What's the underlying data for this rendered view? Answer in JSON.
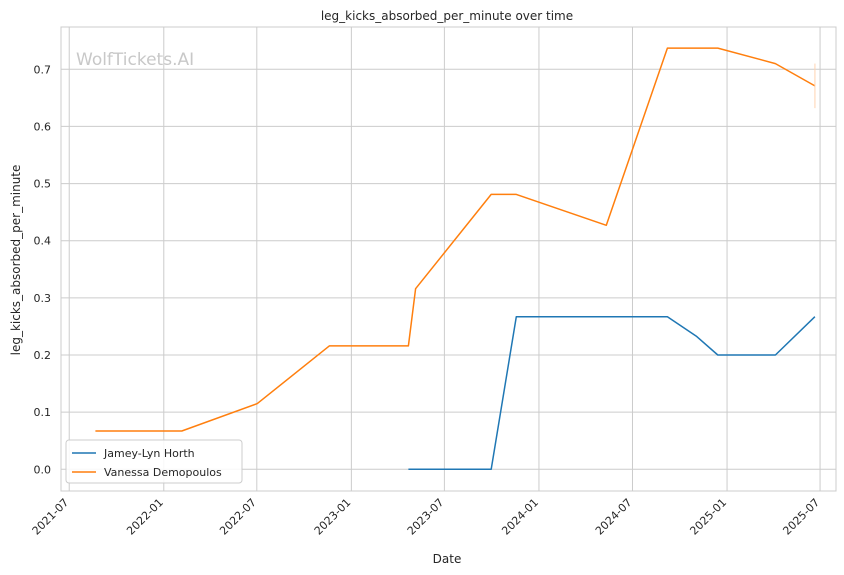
{
  "chart_data": {
    "type": "line",
    "title": "leg_kicks_absorbed_per_minute over time",
    "xlabel": "Date",
    "ylabel": "leg_kicks_absorbed_per_minute",
    "watermark": "WolfTickets.AI",
    "xlim": [
      "2021-06-15",
      "2025-08-01"
    ],
    "ylim": [
      -0.038,
      0.774
    ],
    "x_ticks": [
      "2021-07-01",
      "2022-01-01",
      "2022-07-01",
      "2023-01-01",
      "2023-07-01",
      "2024-01-01",
      "2024-07-01",
      "2025-01-01",
      "2025-07-01"
    ],
    "x_tick_labels": [
      "2021-07",
      "2022-01",
      "2022-07",
      "2023-01",
      "2023-07",
      "2024-01",
      "2024-07",
      "2025-01",
      "2025-07"
    ],
    "y_ticks": [
      0.0,
      0.1,
      0.2,
      0.3,
      0.4,
      0.5,
      0.6,
      0.7
    ],
    "y_tick_labels": [
      "0.0",
      "0.1",
      "0.2",
      "0.3",
      "0.4",
      "0.5",
      "0.6",
      "0.7"
    ],
    "grid": true,
    "legend_position": "lower-left",
    "series": [
      {
        "name": "Jamey-Lyn Horth",
        "color": "#1f77b4",
        "x": [
          "2023-04-22",
          "2023-09-30",
          "2023-11-18",
          "2024-03-23",
          "2024-09-07",
          "2024-11-02",
          "2024-12-14",
          "2025-04-05",
          "2025-06-21"
        ],
        "y": [
          0.0,
          0.0,
          0.267,
          0.267,
          0.267,
          0.233,
          0.2,
          0.2,
          0.267
        ]
      },
      {
        "name": "Vanessa Demopoulos",
        "color": "#ff7f0e",
        "x": [
          "2021-08-21",
          "2022-02-05",
          "2022-07-02",
          "2022-11-19",
          "2023-04-22",
          "2023-05-06",
          "2023-09-30",
          "2023-11-18",
          "2024-05-11",
          "2024-09-07",
          "2024-12-14",
          "2025-04-05",
          "2025-06-21"
        ],
        "y": [
          0.067,
          0.067,
          0.115,
          0.216,
          0.216,
          0.316,
          0.481,
          0.481,
          0.427,
          0.737,
          0.737,
          0.71,
          0.671
        ]
      }
    ]
  }
}
